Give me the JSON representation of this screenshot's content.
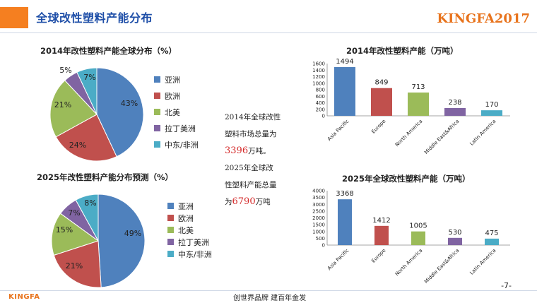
{
  "header": {
    "title": "全球改性塑料产能分布",
    "logo": "KINGFA2017"
  },
  "footer": {
    "logo": "KINGFA",
    "slogan": "创世界品牌 建百年金发",
    "page": "-7-"
  },
  "middle_text": {
    "l1": "2014年全球改性",
    "l2": "塑料市场总量为",
    "v2014": "3396",
    "u1": "万吨。",
    "l3": "2025年全球改",
    "l4": "性塑料产能总量",
    "pre": "为",
    "v2025": "6790",
    "u2": "万吨"
  },
  "colors": {
    "blue": "#4f81bd",
    "red": "#c0504d",
    "green": "#9bbb59",
    "purple": "#8064a2",
    "cyan": "#4bacc6"
  },
  "chart_data": [
    {
      "type": "pie",
      "title": "2014年改性塑料产能全球分布（%）",
      "categories": [
        "亚洲",
        "欧洲",
        "北美",
        "拉丁美洲",
        "中东/非洲"
      ],
      "values": [
        43,
        24,
        21,
        5,
        7
      ],
      "labels": [
        "43%",
        "24%",
        "21%",
        "5%",
        "7%"
      ]
    },
    {
      "type": "pie",
      "title": "2025年改性塑料产能分布预测（%）",
      "categories": [
        "亚洲",
        "欧洲",
        "北美",
        "拉丁美洲",
        "中东/非洲"
      ],
      "values": [
        49,
        21,
        15,
        7,
        8
      ],
      "labels": [
        "49%",
        "21%",
        "15%",
        "7%",
        "8%"
      ]
    },
    {
      "type": "bar",
      "title": "2014年改性塑料产能（万吨）",
      "categories": [
        "Asia Pacific",
        "Europe",
        "North America",
        "Middle East&Africa",
        "Latin America"
      ],
      "values": [
        1494,
        849,
        713,
        238,
        170
      ],
      "colors": [
        "#4f81bd",
        "#c0504d",
        "#9bbb59",
        "#8064a2",
        "#4bacc6"
      ],
      "yticks": [
        0,
        200,
        400,
        600,
        800,
        1000,
        1200,
        1400,
        1600
      ],
      "ylim": [
        0,
        1600
      ]
    },
    {
      "type": "bar",
      "title": "2025年全球改性塑料产能（万吨）",
      "categories": [
        "Asia Pacific",
        "Europe",
        "North America",
        "Middle East&Africa",
        "Latin America"
      ],
      "values": [
        3368,
        1412,
        1005,
        530,
        475
      ],
      "colors": [
        "#4f81bd",
        "#c0504d",
        "#9bbb59",
        "#8064a2",
        "#4bacc6"
      ],
      "yticks": [
        0,
        500,
        1000,
        1500,
        2000,
        2500,
        3000,
        3500,
        4000
      ],
      "ylim": [
        0,
        4000
      ]
    }
  ]
}
